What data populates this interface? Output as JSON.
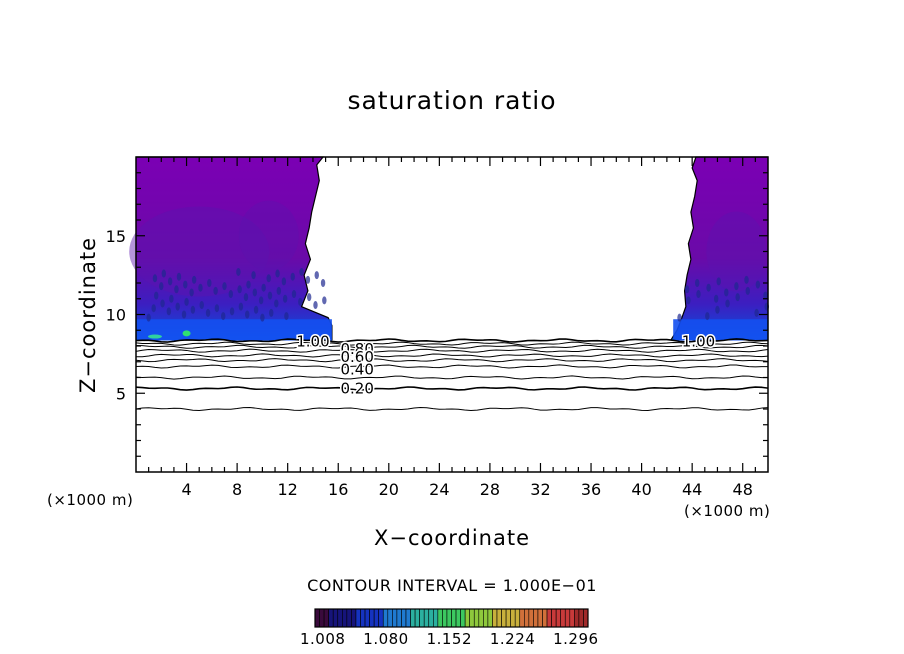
{
  "chart_data": {
    "type": "heatmap",
    "title": "saturation ratio",
    "xlabel": "X−coordinate",
    "ylabel": "Z−coordinate",
    "x_unit_left": "(×1000 m)",
    "x_unit_right": "(×1000 m)",
    "xlim": [
      0,
      50
    ],
    "ylim": [
      0,
      20
    ],
    "x_ticks": [
      4,
      8,
      12,
      16,
      20,
      24,
      28,
      32,
      36,
      40,
      44,
      48
    ],
    "y_ticks": [
      5,
      10,
      15
    ],
    "grid": false,
    "contour_interval": "CONTOUR INTERVAL = 1.000E−01",
    "contour_labels": [
      {
        "text": "1.00",
        "x": 14.0,
        "z": 8.3
      },
      {
        "text": "0.80",
        "x": 17.5,
        "z": 7.8
      },
      {
        "text": "0.60",
        "x": 17.5,
        "z": 7.3
      },
      {
        "text": "0.40",
        "x": 17.5,
        "z": 6.5
      },
      {
        "text": "0.20",
        "x": 17.5,
        "z": 5.3
      },
      {
        "text": "1.00",
        "x": 44.5,
        "z": 8.3
      }
    ],
    "contour_levels": [
      {
        "level": 0.1,
        "z": 4.0
      },
      {
        "level": 0.2,
        "z": 5.3
      },
      {
        "level": 0.3,
        "z": 6.0
      },
      {
        "level": 0.4,
        "z": 6.7
      },
      {
        "level": 0.5,
        "z": 7.1
      },
      {
        "level": 0.6,
        "z": 7.4
      },
      {
        "level": 0.7,
        "z": 7.7
      },
      {
        "level": 0.8,
        "z": 7.95
      },
      {
        "level": 0.9,
        "z": 8.15
      },
      {
        "level": 1.0,
        "z": 8.35
      }
    ],
    "colorbar": {
      "labels": [
        "1.008",
        "1.080",
        "1.152",
        "1.224",
        "1.296"
      ],
      "colors": [
        "#3a0a3c",
        "#16147a",
        "#1533c0",
        "#1f7ad0",
        "#2bb0a0",
        "#3cc860",
        "#8ec83c",
        "#c8b03c",
        "#d0703a",
        "#c83a3a",
        "#a02a2a"
      ]
    },
    "shaded_regions": [
      {
        "name": "left supersaturated region",
        "x_range": [
          0,
          16
        ],
        "z_range": [
          8.3,
          20
        ]
      },
      {
        "name": "right supersaturated region",
        "x_range": [
          42,
          50
        ],
        "z_range": [
          8.3,
          20
        ]
      }
    ]
  }
}
